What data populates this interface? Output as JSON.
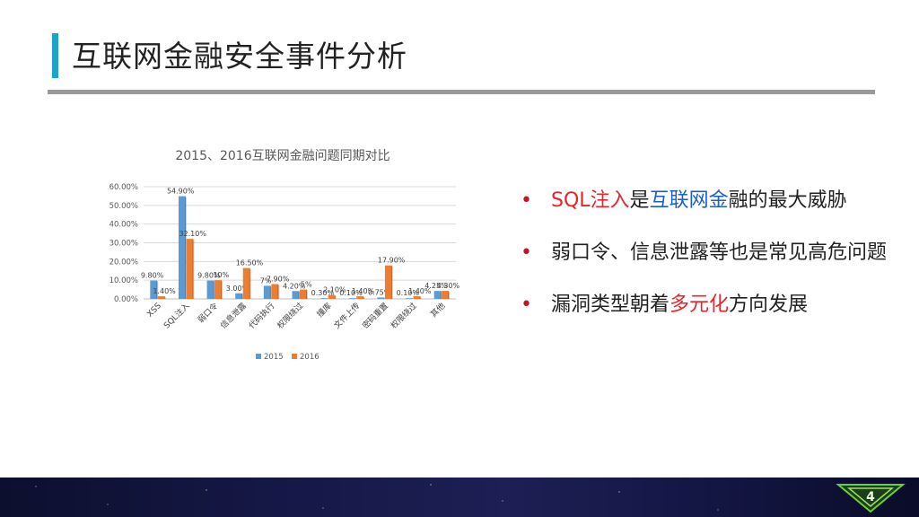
{
  "slide": {
    "title": "互联网金融安全事件分析",
    "page_number": "4"
  },
  "bullets": [
    {
      "parts": [
        {
          "text": "SQL注入",
          "color": "red"
        },
        {
          "text": "是",
          "color": ""
        },
        {
          "text": "互联网金",
          "color": "blue"
        },
        {
          "text": "融的最大威胁",
          "color": ""
        }
      ]
    },
    {
      "parts": [
        {
          "text": "弱口令、信息泄露等也是常见高危问题",
          "color": ""
        }
      ]
    },
    {
      "parts": [
        {
          "text": "漏洞类型朝着",
          "color": ""
        },
        {
          "text": "多元化",
          "color": "red"
        },
        {
          "text": "方向发展",
          "color": ""
        }
      ]
    }
  ],
  "chart_data": {
    "type": "bar",
    "title": "2015、2016互联网金融问题同期对比",
    "categories": [
      "XSS",
      "SQL注入",
      "弱口令",
      "信息泄露",
      "代码执行",
      "权限绕过",
      "撞库",
      "文件上传",
      "密码重置",
      "权限绕过",
      "其他"
    ],
    "series": [
      {
        "name": "2015",
        "values": [
          9.8,
          54.9,
          9.8,
          3.0,
          7.0,
          4.2,
          0.3,
          0.1,
          0.75,
          0.1,
          4.25
        ],
        "labels": [
          "9.80%",
          "54.90%",
          "9.80%",
          "3.00%",
          "7%",
          "4.20%",
          "0.30%",
          "0.10%",
          "0.75%",
          "0.10%",
          "4.25%"
        ]
      },
      {
        "name": "2016",
        "values": [
          1.4,
          32.1,
          10,
          16.5,
          7.9,
          5,
          2.1,
          1.4,
          17.9,
          1.4,
          4.3
        ],
        "labels": [
          "1.40%",
          "32.10%",
          "10%",
          "16.50%",
          "7.90%",
          "5%",
          "2.10%",
          "1.40%",
          "17.90%",
          "1.40%",
          "4.30%"
        ]
      }
    ],
    "ylim": [
      0,
      60
    ],
    "yticks": [
      "0.00%",
      "10.00%",
      "20.00%",
      "30.00%",
      "40.00%",
      "50.00%",
      "60.00%"
    ],
    "colors": [
      "#5b9bd5",
      "#ed7d31"
    ],
    "grid": true,
    "legend": "bottom"
  }
}
